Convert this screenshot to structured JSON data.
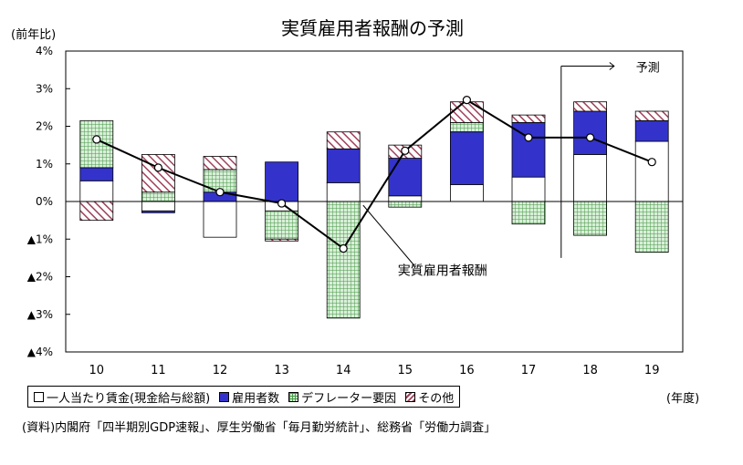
{
  "chart_data": {
    "type": "bar",
    "title": "実質雇用者報酬の予測",
    "ylabel": "(前年比)",
    "xunit": "(年度)",
    "categories": [
      "10",
      "11",
      "12",
      "13",
      "14",
      "15",
      "16",
      "17",
      "18",
      "19"
    ],
    "ylim": [
      -4,
      4
    ],
    "yticks": [
      4,
      3,
      2,
      1,
      0,
      -1,
      -2,
      -3,
      -4
    ],
    "ytick_labels": [
      "4%",
      "3%",
      "2%",
      "1%",
      "0%",
      "▲1%",
      "▲2%",
      "▲3%",
      "▲4%"
    ],
    "series": [
      {
        "name": "一人当たり賃金(現金給与総額)",
        "style": "stacked-bar",
        "color": "#ffffff",
        "values": [
          0.55,
          -0.25,
          -0.95,
          -0.25,
          0.5,
          0.15,
          0.45,
          0.65,
          1.25,
          1.6
        ]
      },
      {
        "name": "雇用者数",
        "style": "stacked-bar",
        "color": "#3333cc",
        "values": [
          0.35,
          -0.05,
          0.25,
          1.05,
          0.9,
          1.0,
          1.4,
          1.45,
          1.15,
          0.55
        ]
      },
      {
        "name": "デフレーター要因",
        "style": "stacked-bar",
        "color": "#7ab87a",
        "values": [
          1.25,
          0.25,
          0.6,
          -0.75,
          -3.1,
          -0.15,
          0.25,
          -0.6,
          -0.9,
          -1.35
        ]
      },
      {
        "name": "その他",
        "style": "stacked-bar",
        "color": "#a0405a",
        "values": [
          -0.5,
          1.0,
          0.35,
          -0.05,
          0.45,
          0.35,
          0.55,
          0.2,
          0.25,
          0.25
        ]
      },
      {
        "name": "実質雇用者報酬",
        "style": "line",
        "values": [
          1.65,
          0.9,
          0.25,
          -0.05,
          -1.25,
          1.35,
          2.7,
          1.7,
          1.7,
          1.05
        ]
      }
    ],
    "line_label": "実質雇用者報酬",
    "forecast_label": "予測",
    "forecast_start_category": "18",
    "grid": false,
    "legend": "bottom"
  },
  "legend_items": [
    {
      "label": "一人当たり賃金(現金給与総額)",
      "swatch": "plain"
    },
    {
      "label": "雇用者数",
      "swatch": "blue"
    },
    {
      "label": "デフレーター要因",
      "swatch": "grid"
    },
    {
      "label": "その他",
      "swatch": "hatch"
    }
  ],
  "source": "(資料)内閣府「四半期別GDP速報」、厚生労働省「毎月勤労統計」、総務省「労働力調査」",
  "colors": {
    "blue": "#3333cc",
    "green_grid": "#4a9a4a",
    "green_bg": "#d8efd8",
    "hatch": "#a0405a",
    "line": "#000000"
  }
}
